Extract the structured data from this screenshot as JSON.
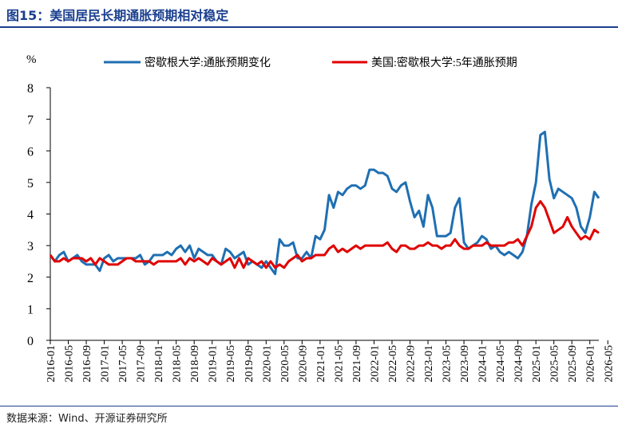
{
  "header": {
    "title": "图15：美国居民长期通胀预期相对稳定"
  },
  "footer": {
    "source": "数据来源：Wind、开源证券研究所"
  },
  "colors": {
    "series1": "#1f6fb2",
    "series2": "#e00000",
    "axis": "#000000",
    "title": "#1a3f8f"
  },
  "chart_data": {
    "type": "line",
    "unit_label": "%",
    "ylim": [
      0,
      8
    ],
    "yticks": [
      "0",
      "1",
      "2",
      "3",
      "4",
      "5",
      "6",
      "7",
      "8"
    ],
    "grid": false,
    "legend_position": "top",
    "x_start": "2016-01",
    "xtick_labels": [
      "2016-01",
      "2016-05",
      "2016-09",
      "2017-01",
      "2017-05",
      "2017-09",
      "2018-01",
      "2018-05",
      "2018-09",
      "2019-01",
      "2019-05",
      "2019-09",
      "2020-01",
      "2020-05",
      "2020-09",
      "2021-01",
      "2021-05",
      "2021-09",
      "2022-01",
      "2022-05",
      "2022-09",
      "2023-01",
      "2023-05",
      "2023-09",
      "2024-01",
      "2024-05",
      "2024-09",
      "2025-01",
      "2025-05",
      "2025-09",
      "2026-01",
      "2026-05"
    ],
    "series": [
      {
        "name": "密歇根大学:通胀预期变化",
        "color": "#1f6fb2",
        "values": [
          2.7,
          2.5,
          2.7,
          2.8,
          2.5,
          2.6,
          2.7,
          2.5,
          2.4,
          2.4,
          2.4,
          2.2,
          2.6,
          2.7,
          2.5,
          2.6,
          2.6,
          2.6,
          2.6,
          2.6,
          2.7,
          2.4,
          2.5,
          2.7,
          2.7,
          2.7,
          2.8,
          2.7,
          2.9,
          3.0,
          2.8,
          3.0,
          2.6,
          2.9,
          2.8,
          2.7,
          2.7,
          2.5,
          2.4,
          2.9,
          2.8,
          2.6,
          2.7,
          2.8,
          2.4,
          2.5,
          2.4,
          2.3,
          2.5,
          2.3,
          2.1,
          3.2,
          3.0,
          3.0,
          3.1,
          2.6,
          2.6,
          2.8,
          2.6,
          3.3,
          3.2,
          3.5,
          4.6,
          4.2,
          4.7,
          4.6,
          4.8,
          4.9,
          4.9,
          4.8,
          4.9,
          5.4,
          5.4,
          5.3,
          5.3,
          5.2,
          4.8,
          4.7,
          4.9,
          5.0,
          4.4,
          3.9,
          4.1,
          3.6,
          4.6,
          4.2,
          3.3,
          3.3,
          3.3,
          3.4,
          4.2,
          4.5,
          3.1,
          2.9,
          3.0,
          3.1,
          3.3,
          3.2,
          2.9,
          3.0,
          2.8,
          2.7,
          2.8,
          2.7,
          2.6,
          2.8,
          3.3,
          4.3,
          5.0,
          6.5,
          6.6,
          5.1,
          4.5,
          4.8,
          4.7,
          4.6,
          4.5,
          4.2,
          3.6,
          3.4,
          3.9,
          4.7,
          4.5
        ]
      },
      {
        "name": "美国:密歇根大学:5年通胀预期",
        "color": "#e00000",
        "values": [
          2.7,
          2.5,
          2.5,
          2.6,
          2.5,
          2.6,
          2.6,
          2.6,
          2.5,
          2.6,
          2.4,
          2.6,
          2.5,
          2.4,
          2.4,
          2.4,
          2.5,
          2.6,
          2.6,
          2.5,
          2.5,
          2.5,
          2.5,
          2.4,
          2.5,
          2.5,
          2.5,
          2.5,
          2.5,
          2.6,
          2.4,
          2.6,
          2.5,
          2.6,
          2.5,
          2.4,
          2.6,
          2.5,
          2.4,
          2.5,
          2.6,
          2.3,
          2.6,
          2.3,
          2.6,
          2.5,
          2.4,
          2.5,
          2.3,
          2.5,
          2.3,
          2.4,
          2.3,
          2.5,
          2.6,
          2.7,
          2.5,
          2.6,
          2.6,
          2.7,
          2.7,
          2.7,
          2.9,
          3.0,
          2.8,
          2.9,
          2.8,
          2.9,
          3.0,
          2.9,
          3.0,
          3.0,
          3.0,
          3.0,
          3.0,
          3.1,
          2.9,
          2.8,
          3.0,
          3.0,
          2.9,
          2.9,
          3.0,
          3.0,
          3.1,
          3.0,
          3.0,
          2.9,
          3.0,
          3.0,
          3.2,
          3.0,
          2.9,
          2.9,
          3.0,
          3.0,
          3.0,
          3.1,
          3.0,
          3.0,
          3.0,
          3.0,
          3.1,
          3.1,
          3.2,
          3.0,
          3.3,
          3.6,
          4.2,
          4.4,
          4.2,
          3.8,
          3.4,
          3.5,
          3.6,
          3.9,
          3.6,
          3.4,
          3.2,
          3.3,
          3.2,
          3.5,
          3.4
        ]
      }
    ]
  }
}
